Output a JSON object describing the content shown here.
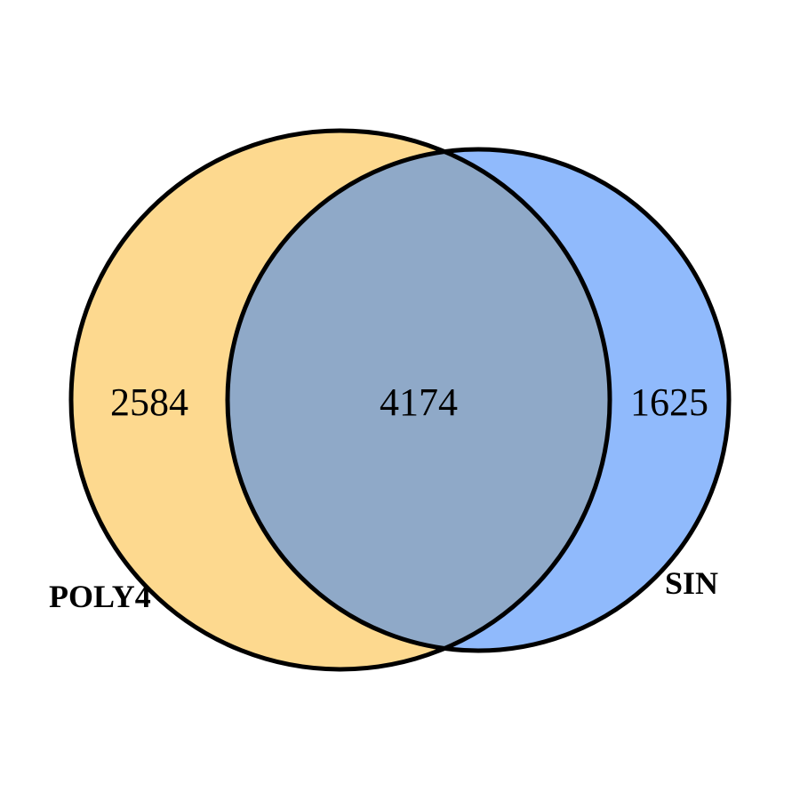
{
  "diagram": {
    "type": "venn",
    "sets": [
      {
        "label": "POLY4",
        "color": "#FDD98F"
      },
      {
        "label": "SIN",
        "color": "#90BAFC"
      }
    ],
    "overlap_color": "#8FA9C8",
    "outline_color": "#000000",
    "regions": {
      "only_left": "2584",
      "both": "4174",
      "only_right": "1625"
    }
  }
}
